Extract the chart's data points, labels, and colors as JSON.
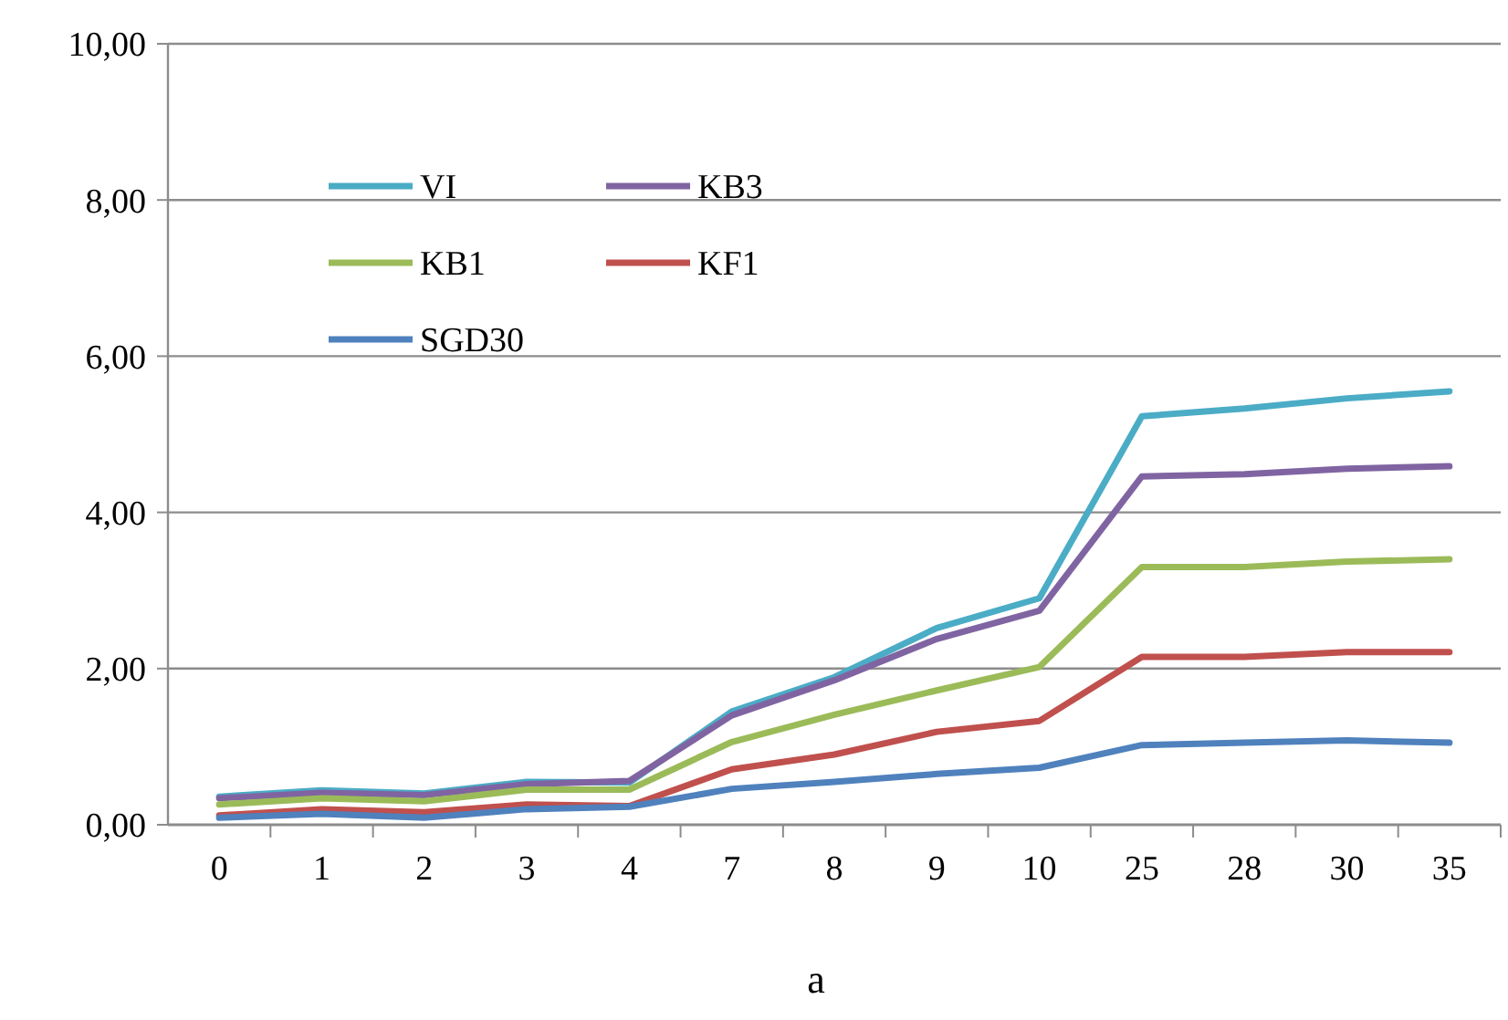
{
  "chart_data": {
    "type": "line",
    "xlabel": "a",
    "categories": [
      "0",
      "1",
      "2",
      "3",
      "4",
      "7",
      "8",
      "9",
      "10",
      "25",
      "28",
      "30",
      "35"
    ],
    "series": [
      {
        "name": "VI",
        "color": "#4bacc6",
        "values": [
          0.36,
          0.44,
          0.4,
          0.55,
          0.54,
          1.45,
          1.89,
          2.52,
          2.9,
          5.23,
          5.33,
          5.46,
          5.55
        ]
      },
      {
        "name": "KB3",
        "color": "#8064a2",
        "values": [
          0.34,
          0.41,
          0.38,
          0.52,
          0.56,
          1.4,
          1.85,
          2.38,
          2.74,
          4.46,
          4.49,
          4.56,
          4.59
        ]
      },
      {
        "name": "KB1",
        "color": "#9bbb59",
        "values": [
          0.26,
          0.34,
          0.3,
          0.45,
          0.45,
          1.06,
          1.41,
          1.72,
          2.02,
          3.3,
          3.3,
          3.37,
          3.4
        ]
      },
      {
        "name": "KF1",
        "color": "#c0504d",
        "values": [
          0.12,
          0.2,
          0.16,
          0.26,
          0.24,
          0.71,
          0.9,
          1.19,
          1.33,
          2.15,
          2.15,
          2.21,
          2.21
        ]
      },
      {
        "name": "SGD30",
        "color": "#4f81bd",
        "values": [
          0.09,
          0.14,
          0.09,
          0.2,
          0.23,
          0.46,
          0.55,
          0.65,
          0.73,
          1.02,
          1.05,
          1.08,
          1.05
        ]
      }
    ],
    "ylim": [
      0,
      10
    ],
    "yticks": [
      {
        "value": 0,
        "label": "0,00"
      },
      {
        "value": 2,
        "label": "2,00"
      },
      {
        "value": 4,
        "label": "4,00"
      },
      {
        "value": 6,
        "label": "6,00"
      },
      {
        "value": 8,
        "label": "8,00"
      },
      {
        "value": 10,
        "label": "10,00"
      }
    ],
    "grid": "y",
    "legend": "top left",
    "marker": "none",
    "line_style": "solid"
  }
}
